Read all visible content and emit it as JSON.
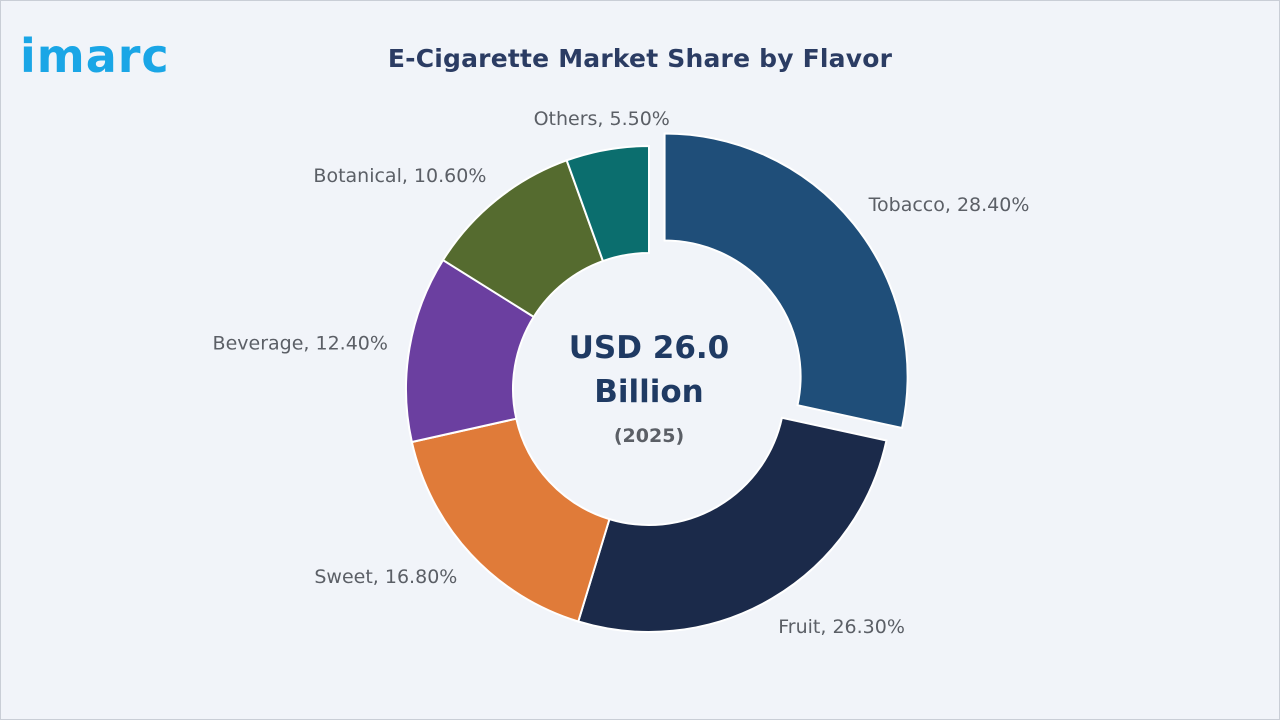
{
  "brand": {
    "logo_text": "imarc",
    "logo_color": "#1aa6e6"
  },
  "title": "E-Cigarette Market Share by Flavor",
  "chart_data": {
    "type": "pie",
    "variant": "donut",
    "title": "E-Cigarette Market Share by Flavor",
    "center_label": {
      "line1": "USD 26.0",
      "line2": "Billion",
      "line3": "(2025)"
    },
    "unit": "%",
    "slices": [
      {
        "label": "Tobacco",
        "value": 28.4,
        "display": "Tobacco, 28.40%",
        "color": "#1f4e79",
        "exploded": true
      },
      {
        "label": "Fruit",
        "value": 26.3,
        "display": "Fruit, 26.30%",
        "color": "#1b2a4a",
        "exploded": false
      },
      {
        "label": "Sweet",
        "value": 16.8,
        "display": "Sweet, 16.80%",
        "color": "#e07b39",
        "exploded": false
      },
      {
        "label": "Beverage",
        "value": 12.4,
        "display": "Beverage, 12.40%",
        "color": "#6b3fa0",
        "exploded": false
      },
      {
        "label": "Botanical",
        "value": 10.6,
        "display": "Botanical, 10.60%",
        "color": "#556b2f",
        "exploded": false
      },
      {
        "label": "Others",
        "value": 5.5,
        "display": "Others, 5.50%",
        "color": "#0b6e6e",
        "exploded": false
      }
    ]
  }
}
